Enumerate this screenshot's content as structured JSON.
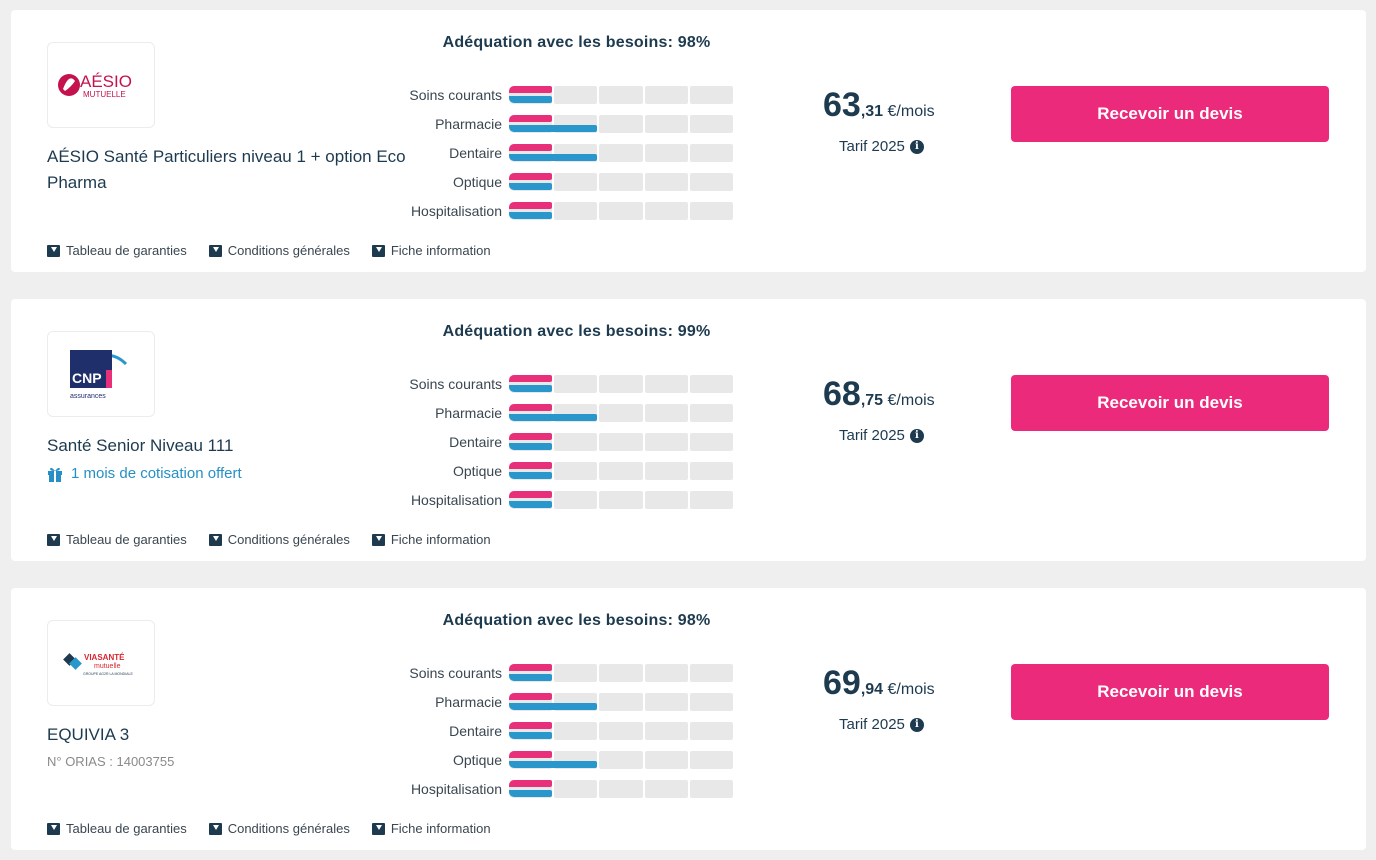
{
  "docs": {
    "tableau": "Tableau de garanties",
    "conditions": "Conditions générales",
    "fiche": "Fiche information"
  },
  "quote_button_label": "Recevoir un devis",
  "colors": {
    "accent_pink": "#eb2a7c",
    "bar_pink": "#e8307a",
    "bar_blue": "#2a97cc",
    "text_dark": "#1d3a4f"
  },
  "offers": [
    {
      "logo": {
        "brand": "AÉSIO",
        "sub": "MUTUELLE"
      },
      "product_name": "AÉSIO Santé Particuliers niveau 1 + option Eco Pharma",
      "match_title": "Adéquation avec les besoins: 98%",
      "coverage": [
        {
          "label": "Soins courants",
          "level_pink": 1,
          "level_blue": 1
        },
        {
          "label": "Pharmacie",
          "level_pink": 1,
          "level_blue": 2
        },
        {
          "label": "Dentaire",
          "level_pink": 1,
          "level_blue": 2
        },
        {
          "label": "Optique",
          "level_pink": 1,
          "level_blue": 1
        },
        {
          "label": "Hospitalisation",
          "level_pink": 1,
          "level_blue": 1
        }
      ],
      "price": {
        "integer": "63",
        "decimals": ",31",
        "unit": " €/mois"
      },
      "tarif_label": "Tarif 2025"
    },
    {
      "logo": {
        "brand": "CNP",
        "sub": "assurances"
      },
      "product_name": "Santé Senior Niveau 111",
      "promo": "1 mois de cotisation offert",
      "match_title": "Adéquation avec les besoins: 99%",
      "coverage": [
        {
          "label": "Soins courants",
          "level_pink": 1,
          "level_blue": 1
        },
        {
          "label": "Pharmacie",
          "level_pink": 1,
          "level_blue": 2
        },
        {
          "label": "Dentaire",
          "level_pink": 1,
          "level_blue": 1
        },
        {
          "label": "Optique",
          "level_pink": 1,
          "level_blue": 1
        },
        {
          "label": "Hospitalisation",
          "level_pink": 1,
          "level_blue": 1
        }
      ],
      "price": {
        "integer": "68",
        "decimals": ",75",
        "unit": " €/mois"
      },
      "tarif_label": "Tarif 2025"
    },
    {
      "logo": {
        "brand": "VIASANTÉ",
        "sub": "mutuelle",
        "tag": "GROUPE AG2R LA MONDIALE"
      },
      "product_name": "EQUIVIA 3",
      "orias": "N° ORIAS : 14003755",
      "match_title": "Adéquation avec les besoins: 98%",
      "coverage": [
        {
          "label": "Soins courants",
          "level_pink": 1,
          "level_blue": 1
        },
        {
          "label": "Pharmacie",
          "level_pink": 1,
          "level_blue": 2
        },
        {
          "label": "Dentaire",
          "level_pink": 1,
          "level_blue": 1
        },
        {
          "label": "Optique",
          "level_pink": 1,
          "level_blue": 2
        },
        {
          "label": "Hospitalisation",
          "level_pink": 1,
          "level_blue": 1
        }
      ],
      "price": {
        "integer": "69",
        "decimals": ",94",
        "unit": " €/mois"
      },
      "tarif_label": "Tarif 2025"
    }
  ]
}
